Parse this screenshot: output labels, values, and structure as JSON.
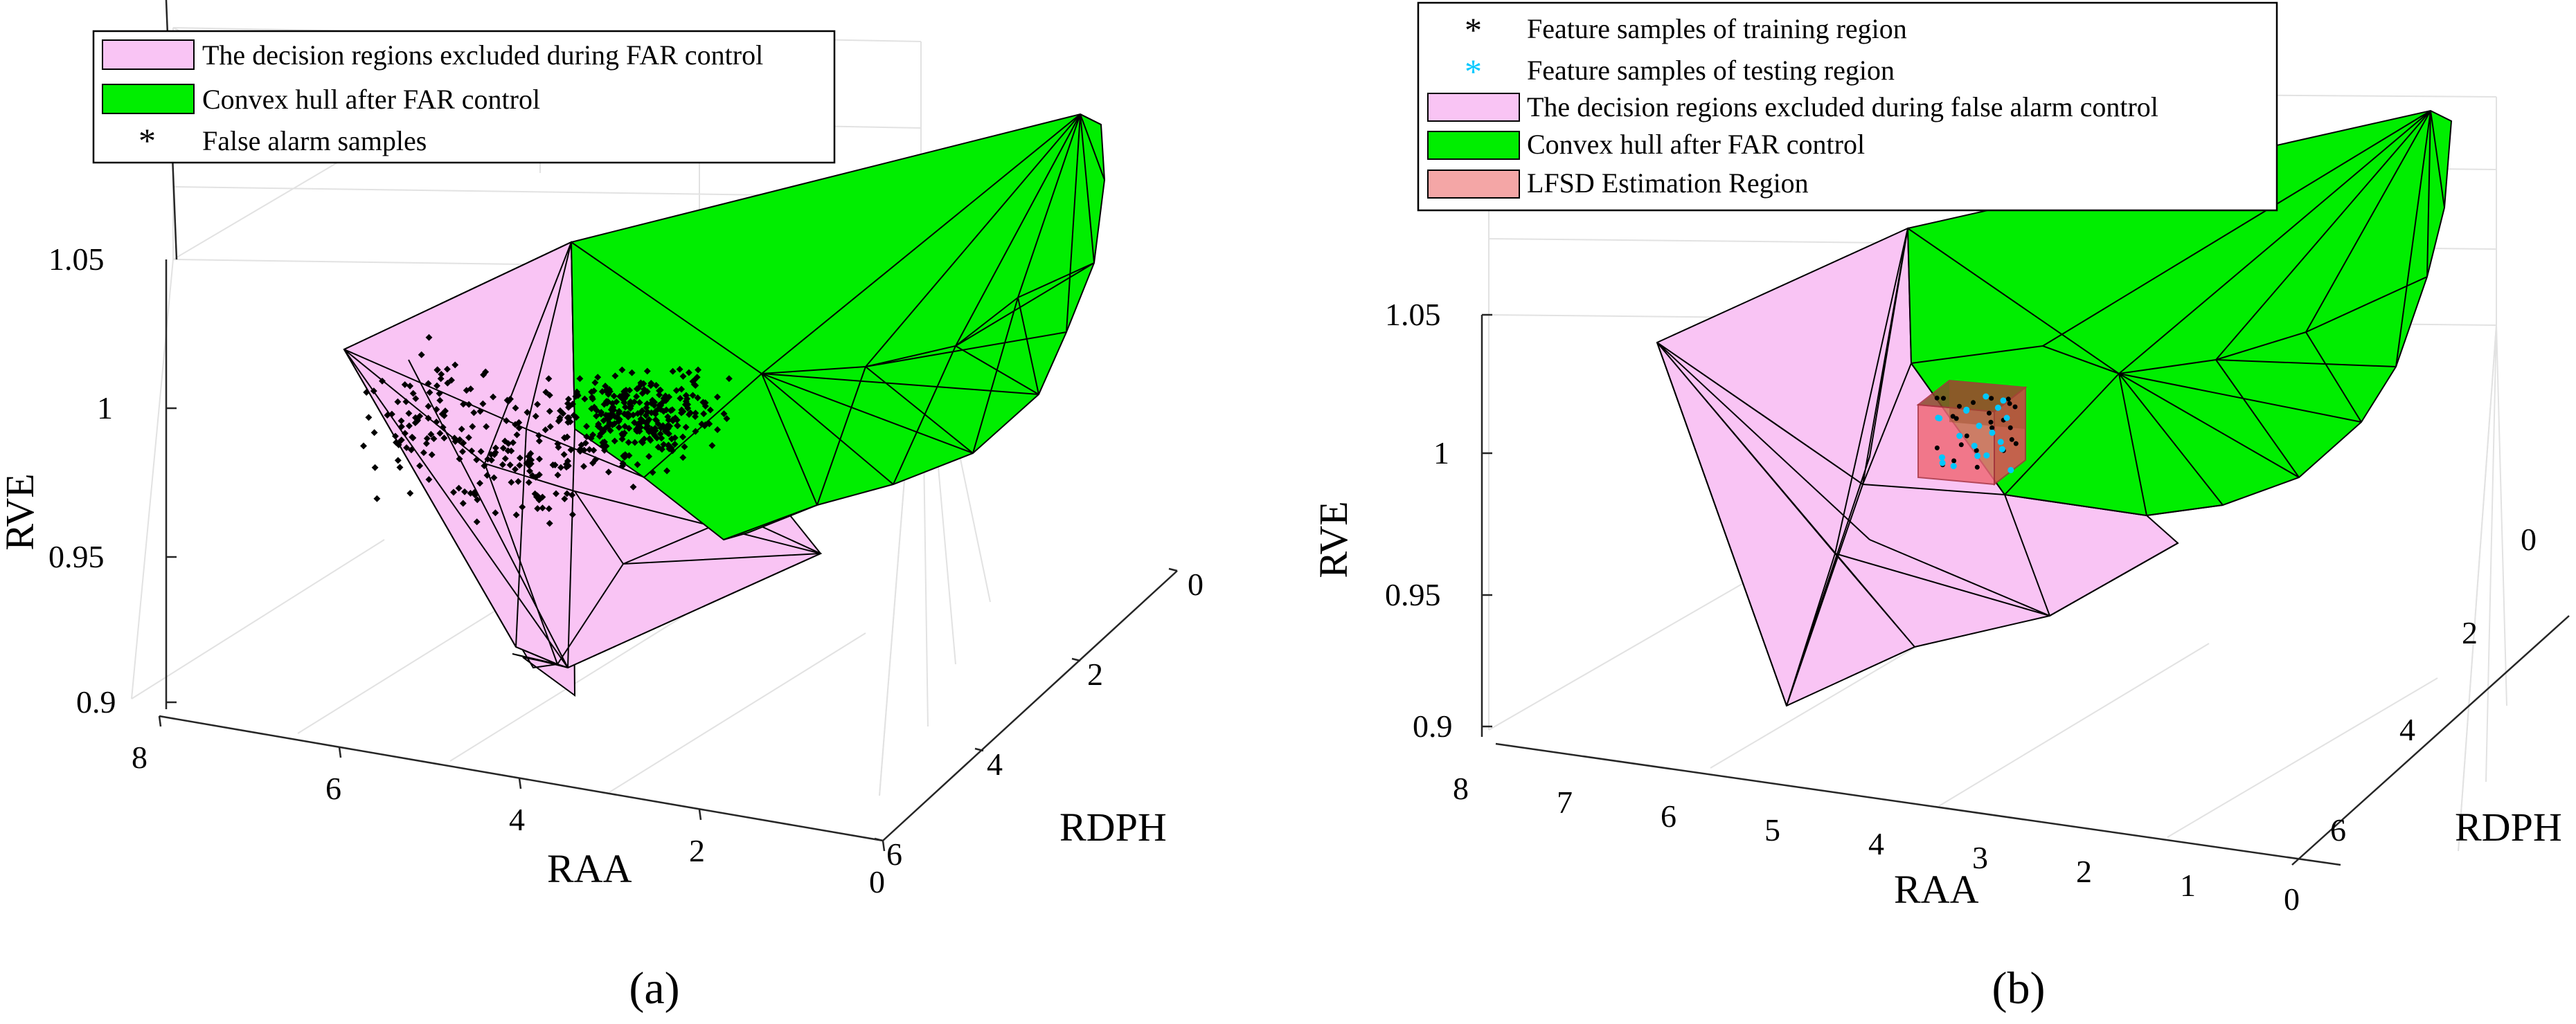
{
  "chart_data": [
    {
      "type": "scatter3d",
      "panel_label": "(a)",
      "xlabel": "RAA",
      "ylabel": "RDPH",
      "zlabel": "RVE",
      "x_ticks": [
        "8",
        "6",
        "4",
        "2",
        "0"
      ],
      "y_ticks": [
        "0",
        "2",
        "4",
        "6"
      ],
      "z_ticks": [
        "1.05",
        "1",
        "0.95",
        "0.9"
      ],
      "xlim": [
        0,
        8
      ],
      "ylim": [
        0,
        6
      ],
      "zlim": [
        0.9,
        1.05
      ],
      "legend": [
        {
          "label": "The decision regions excluded during FAR control",
          "marker": "patch",
          "color": "#f9c4f4"
        },
        {
          "label": "Convex hull after FAR control",
          "marker": "patch",
          "color": "#00ee00"
        },
        {
          "label": "False alarm samples",
          "marker": "asterisk",
          "color": "#000000"
        }
      ],
      "series": [
        {
          "name": "The decision regions excluded during FAR control",
          "kind": "surface",
          "color": "#f9c4f4"
        },
        {
          "name": "Convex hull after FAR control",
          "kind": "surface",
          "color": "#00ee00"
        },
        {
          "name": "False alarm samples",
          "kind": "points",
          "color": "#000000",
          "count_approx": 500,
          "raa_range": [
            1.5,
            6.5
          ],
          "rve_range": [
            0.95,
            1.01
          ]
        }
      ]
    },
    {
      "type": "scatter3d",
      "panel_label": "(b)",
      "xlabel": "RAA",
      "ylabel": "RDPH",
      "zlabel": "RVE",
      "x_ticks": [
        "8",
        "7",
        "6",
        "5",
        "4",
        "3",
        "2",
        "1",
        "0"
      ],
      "y_ticks": [
        "0",
        "2",
        "4",
        "6"
      ],
      "z_ticks": [
        "1.05",
        "1",
        "0.95",
        "0.9"
      ],
      "xlim": [
        0,
        8
      ],
      "ylim": [
        0,
        6
      ],
      "zlim": [
        0.9,
        1.05
      ],
      "legend": [
        {
          "label": "Feature samples of training region",
          "marker": "asterisk",
          "color": "#000000"
        },
        {
          "label": "Feature samples of testing region",
          "marker": "asterisk",
          "color": "#00c8ff"
        },
        {
          "label": "The decision regions excluded during false alarm control",
          "marker": "patch",
          "color": "#f9c4f4"
        },
        {
          "label": "Convex hull after FAR control",
          "marker": "patch",
          "color": "#00ee00"
        },
        {
          "label": "LFSD Estimation Region",
          "marker": "patch",
          "color": "#f4a6a6"
        }
      ],
      "series": [
        {
          "name": "Feature samples of training region",
          "kind": "points",
          "color": "#000000",
          "count_approx": 25
        },
        {
          "name": "Feature samples of testing region",
          "kind": "points",
          "color": "#00c8ff",
          "count_approx": 20
        },
        {
          "name": "The decision regions excluded during false alarm control",
          "kind": "surface",
          "color": "#f9c4f4"
        },
        {
          "name": "Convex hull after FAR control",
          "kind": "surface",
          "color": "#00ee00"
        },
        {
          "name": "LFSD Estimation Region",
          "kind": "box",
          "color": "#f4a6a6"
        }
      ]
    }
  ]
}
